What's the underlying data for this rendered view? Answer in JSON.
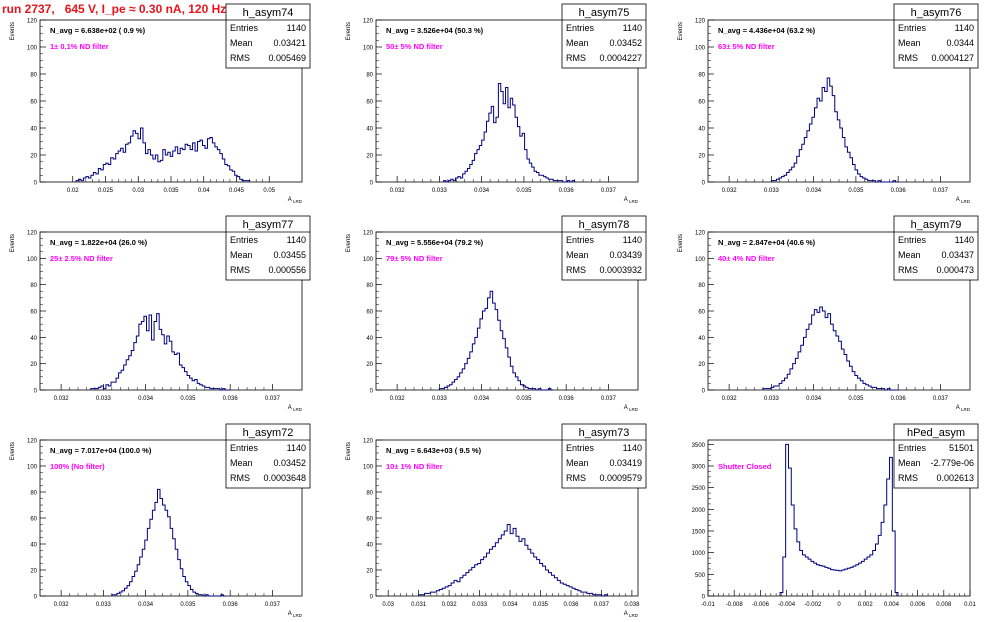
{
  "page": {
    "title": "run 2737,   645 V, I_pe ≈ 0.30 nA, 120 Hz"
  },
  "colors": {
    "title": "#e8141c",
    "histogram_line": "#000080",
    "annotation": "#ff00ff",
    "axis": "#000000"
  },
  "chart_data": [
    {
      "type": "histogram",
      "name": "h_asym74",
      "stats": {
        "Entries": "1140",
        "Mean": "0.03421",
        "RMS": "0.005469"
      },
      "navg": "N_avg = 6.638e+02 ( 0.9 %)",
      "annotation": "1± 0.1% ND filter",
      "xlim": [
        0.015,
        0.055
      ],
      "ylim": [
        0,
        120
      ],
      "xticks": [
        0.02,
        0.025,
        0.03,
        0.035,
        0.04,
        0.045,
        0.05
      ],
      "xticklabels": [
        "0.02",
        "0.025",
        "0.03",
        "0.035",
        "0.04",
        "0.045",
        "0.05"
      ],
      "yticks": [
        0,
        20,
        40,
        60,
        80,
        100,
        120
      ],
      "ylabel": "Events",
      "xlabel": "A",
      "bin_edges": [
        0.0205,
        0.047
      ],
      "counts": [
        1,
        2,
        1,
        3,
        4,
        3,
        5,
        7,
        6,
        10,
        9,
        13,
        14,
        13,
        18,
        17,
        21,
        23,
        25,
        22,
        28,
        29,
        34,
        38,
        36,
        32,
        40,
        29,
        21,
        24,
        20,
        17,
        20,
        15,
        16,
        24,
        20,
        22,
        19,
        23,
        26,
        21,
        25,
        24,
        28,
        27,
        24,
        29,
        23,
        30,
        31,
        27,
        25,
        32,
        33,
        29,
        26,
        24,
        21,
        17,
        13,
        12,
        9,
        8,
        5,
        4,
        2,
        1,
        1,
        1
      ]
    },
    {
      "type": "histogram",
      "name": "h_asym75",
      "stats": {
        "Entries": "1140",
        "Mean": "0.03452",
        "RMS": "0.0004227"
      },
      "navg": "N_avg = 3.526e+04 (50.3 %)",
      "annotation": "50± 5% ND filter",
      "xlim": [
        0.0315,
        0.0377
      ],
      "ylim": [
        0,
        120
      ],
      "xticks": [
        0.032,
        0.033,
        0.034,
        0.035,
        0.036,
        0.037
      ],
      "xticklabels": [
        "0.032",
        "0.033",
        "0.034",
        "0.035",
        "0.036",
        "0.037"
      ],
      "yticks": [
        0,
        20,
        40,
        60,
        80,
        100,
        120
      ],
      "ylabel": "Events",
      "xlabel": "A",
      "bin_edges": [
        0.0331,
        0.0362
      ],
      "counts": [
        1,
        0,
        1,
        2,
        1,
        3,
        4,
        3,
        6,
        8,
        10,
        13,
        16,
        21,
        24,
        27,
        31,
        37,
        45,
        51,
        56,
        44,
        48,
        73,
        67,
        58,
        70,
        55,
        62,
        57,
        48,
        41,
        34,
        36,
        24,
        17,
        14,
        11,
        8,
        7,
        5,
        5,
        4,
        3,
        2,
        2,
        1,
        1,
        1,
        1,
        0,
        0,
        1,
        0,
        1
      ]
    },
    {
      "type": "histogram",
      "name": "h_asym76",
      "stats": {
        "Entries": "1140",
        "Mean": "0.0344",
        "RMS": "0.0004127"
      },
      "navg": "N_avg = 4.436e+04 (63.2 %)",
      "annotation": "63± 5% ND filter",
      "xlim": [
        0.0315,
        0.0377
      ],
      "ylim": [
        0,
        120
      ],
      "xticks": [
        0.032,
        0.033,
        0.034,
        0.035,
        0.036,
        0.037
      ],
      "xticklabels": [
        "0.032",
        "0.033",
        "0.034",
        "0.035",
        "0.036",
        "0.037"
      ],
      "yticks": [
        0,
        20,
        40,
        60,
        80,
        100,
        120
      ],
      "ylabel": "Events",
      "xlabel": "A",
      "bin_edges": [
        0.033,
        0.036
      ],
      "counts": [
        1,
        1,
        2,
        3,
        4,
        5,
        7,
        9,
        11,
        14,
        19,
        24,
        28,
        33,
        38,
        43,
        48,
        55,
        62,
        60,
        70,
        67,
        77,
        71,
        64,
        52,
        46,
        40,
        33,
        26,
        22,
        18,
        13,
        9,
        6,
        4,
        3,
        2,
        1,
        1,
        1,
        0,
        1,
        0,
        0,
        0,
        0,
        0,
        1,
        0
      ]
    },
    {
      "type": "histogram",
      "name": "h_asym77",
      "stats": {
        "Entries": "1140",
        "Mean": "0.03455",
        "RMS": "0.000556"
      },
      "navg": "N_avg = 1.822e+04 (26.0 %)",
      "annotation": "25± 2.5% ND filter",
      "xlim": [
        0.0315,
        0.0377
      ],
      "ylim": [
        0,
        120
      ],
      "xticks": [
        0.032,
        0.033,
        0.034,
        0.035,
        0.036,
        0.037
      ],
      "xticklabels": [
        "0.032",
        "0.033",
        "0.034",
        "0.035",
        "0.036",
        "0.037"
      ],
      "yticks": [
        0,
        20,
        40,
        60,
        80,
        100,
        120
      ],
      "ylabel": "Events",
      "xlabel": "A",
      "bin_edges": [
        0.0327,
        0.036
      ],
      "counts": [
        1,
        1,
        1,
        2,
        3,
        1,
        4,
        3,
        6,
        6,
        9,
        13,
        15,
        19,
        23,
        26,
        30,
        36,
        41,
        50,
        52,
        56,
        45,
        57,
        38,
        52,
        58,
        46,
        42,
        35,
        41,
        37,
        29,
        27,
        28,
        19,
        17,
        14,
        11,
        9,
        7,
        8,
        5,
        4,
        3,
        2,
        2,
        1,
        1,
        1,
        1,
        0,
        1,
        0,
        0
      ]
    },
    {
      "type": "histogram",
      "name": "h_asym78",
      "stats": {
        "Entries": "1140",
        "Mean": "0.03439",
        "RMS": "0.0003932"
      },
      "navg": "N_avg = 5.556e+04 (79.2 %)",
      "annotation": "79± 5% ND filter",
      "xlim": [
        0.0315,
        0.0377
      ],
      "ylim": [
        0,
        120
      ],
      "xticks": [
        0.032,
        0.033,
        0.034,
        0.035,
        0.036,
        0.037
      ],
      "xticklabels": [
        "0.032",
        "0.033",
        "0.034",
        "0.035",
        "0.036",
        "0.037"
      ],
      "yticks": [
        0,
        20,
        40,
        60,
        80,
        100,
        120
      ],
      "ylabel": "Events",
      "xlabel": "A",
      "bin_edges": [
        0.033,
        0.0357
      ],
      "counts": [
        1,
        1,
        2,
        3,
        4,
        6,
        8,
        10,
        13,
        16,
        20,
        24,
        29,
        35,
        40,
        47,
        54,
        60,
        62,
        70,
        75,
        66,
        61,
        53,
        45,
        39,
        32,
        25,
        18,
        13,
        10,
        7,
        4,
        3,
        2,
        1,
        1,
        1,
        0,
        1,
        0,
        0,
        0,
        1,
        0
      ]
    },
    {
      "type": "histogram",
      "name": "h_asym79",
      "stats": {
        "Entries": "1140",
        "Mean": "0.03437",
        "RMS": "0.000473"
      },
      "navg": "N_avg = 2.847e+04 (40.6 %)",
      "annotation": "40± 4% ND filter",
      "xlim": [
        0.0315,
        0.0377
      ],
      "ylim": [
        0,
        120
      ],
      "xticks": [
        0.032,
        0.033,
        0.034,
        0.035,
        0.036,
        0.037
      ],
      "xticklabels": [
        "0.032",
        "0.033",
        "0.034",
        "0.035",
        "0.036",
        "0.037"
      ],
      "yticks": [
        0,
        20,
        40,
        60,
        80,
        100,
        120
      ],
      "ylabel": "Events",
      "xlabel": "A",
      "bin_edges": [
        0.0328,
        0.036
      ],
      "counts": [
        1,
        1,
        1,
        2,
        3,
        3,
        5,
        7,
        9,
        12,
        16,
        20,
        24,
        29,
        34,
        40,
        46,
        50,
        57,
        61,
        59,
        63,
        60,
        55,
        58,
        50,
        45,
        41,
        37,
        31,
        27,
        22,
        18,
        14,
        11,
        9,
        7,
        5,
        4,
        3,
        2,
        2,
        1,
        1,
        1,
        0,
        1,
        0,
        0,
        0
      ]
    },
    {
      "type": "histogram",
      "name": "h_asym72",
      "stats": {
        "Entries": "1140",
        "Mean": "0.03452",
        "RMS": "0.0003648"
      },
      "navg": "N_avg = 7.017e+04 (100.0 %)",
      "annotation": "100% (No filter)",
      "xlim": [
        0.0315,
        0.0377
      ],
      "ylim": [
        0,
        120
      ],
      "xticks": [
        0.032,
        0.033,
        0.034,
        0.035,
        0.036,
        0.037
      ],
      "xticklabels": [
        "0.032",
        "0.033",
        "0.034",
        "0.035",
        "0.036",
        "0.037"
      ],
      "yticks": [
        0,
        20,
        40,
        60,
        80,
        100,
        120
      ],
      "ylabel": "Events",
      "xlabel": "A",
      "bin_edges": [
        0.0332,
        0.0359
      ],
      "counts": [
        1,
        1,
        2,
        3,
        4,
        6,
        8,
        11,
        15,
        19,
        24,
        30,
        36,
        43,
        52,
        59,
        66,
        72,
        82,
        75,
        70,
        66,
        61,
        52,
        44,
        36,
        28,
        21,
        15,
        11,
        8,
        5,
        3,
        2,
        1,
        1,
        0,
        1,
        0,
        0,
        0,
        0,
        0,
        1,
        0
      ]
    },
    {
      "type": "histogram",
      "name": "h_asym73",
      "stats": {
        "Entries": "1140",
        "Mean": "0.03419",
        "RMS": "0.0009579"
      },
      "navg": "N_avg = 6.643e+03 ( 9.5 %)",
      "annotation": "10± 1% ND filter",
      "xlim": [
        0.0296,
        0.0382
      ],
      "ylim": [
        0,
        120
      ],
      "xticks": [
        0.03,
        0.031,
        0.032,
        0.033,
        0.034,
        0.035,
        0.036,
        0.037,
        0.038
      ],
      "xticklabels": [
        "0.03",
        "0.031",
        "0.032",
        "0.033",
        "0.034",
        "0.035",
        "0.036",
        "0.037",
        "0.038"
      ],
      "yticks": [
        0,
        20,
        40,
        60,
        80,
        100,
        120
      ],
      "ylabel": "Events",
      "xlabel": "A",
      "bin_edges": [
        0.031,
        0.0372
      ],
      "counts": [
        1,
        1,
        2,
        2,
        3,
        3,
        4,
        5,
        6,
        7,
        8,
        10,
        12,
        11,
        14,
        16,
        18,
        20,
        22,
        24,
        25,
        28,
        30,
        33,
        36,
        38,
        41,
        44,
        47,
        50,
        55,
        48,
        52,
        46,
        42,
        44,
        39,
        36,
        33,
        30,
        28,
        25,
        23,
        20,
        18,
        16,
        14,
        12,
        10,
        9,
        8,
        7,
        6,
        5,
        4,
        3,
        3,
        2,
        2,
        1,
        1,
        1,
        0,
        1
      ]
    },
    {
      "type": "histogram",
      "name": "hPed_asym",
      "stats": {
        "Entries": "51501",
        "Mean": "-2.779e-06",
        "RMS": "0.002613"
      },
      "navg": "",
      "annotation": "Shutter Closed",
      "xlim": [
        -0.01,
        0.01
      ],
      "ylim": [
        0,
        3600
      ],
      "xticks": [
        -0.01,
        -0.008,
        -0.006,
        -0.004,
        -0.002,
        0,
        0.002,
        0.004,
        0.006,
        0.008,
        0.01
      ],
      "xticklabels": [
        "-0.01",
        "-0.008",
        "-0.006",
        "-0.004",
        "-0.002",
        "0",
        "0.002",
        "0.004",
        "0.006",
        "0.008",
        "0.01"
      ],
      "yticks": [
        0,
        500,
        1000,
        1500,
        2000,
        2500,
        3000,
        3500
      ],
      "ylabel": "",
      "xlabel": "",
      "bin_edges": [
        -0.0045,
        0.0045
      ],
      "counts": [
        80,
        900,
        3500,
        2950,
        2100,
        1550,
        1250,
        1050,
        950,
        900,
        850,
        800,
        760,
        720,
        700,
        690,
        660,
        640,
        610,
        600,
        590,
        580,
        600,
        620,
        640,
        660,
        690,
        720,
        760,
        800,
        850,
        900,
        950,
        1050,
        1200,
        1400,
        1700,
        2100,
        2700,
        3200,
        1500,
        80
      ]
    }
  ]
}
